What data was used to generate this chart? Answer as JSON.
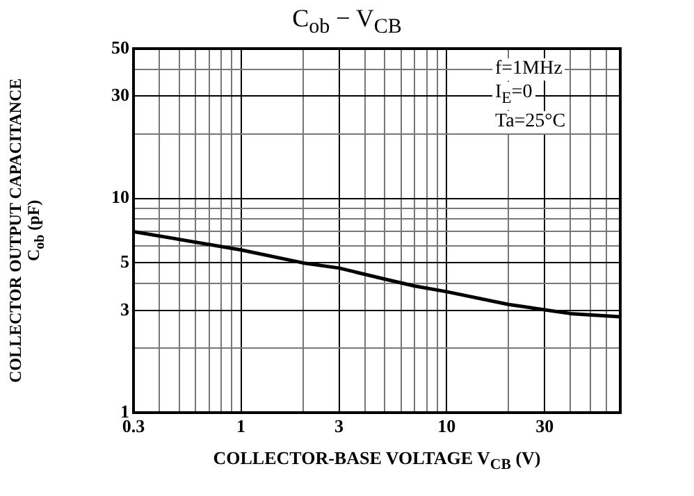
{
  "chart_data": {
    "type": "line",
    "title": "C$_{ob}$ − V$_{CB}$",
    "xlabel": "COLLECTOR-BASE VOLTAGE   V$_{CB}$   (V)",
    "ylabel": "COLLECTOR OUTPUT CAPACITANCE\nC$_{ob}$   (pF)",
    "annotations": [
      "f=1MHz",
      "I$_{E}$=0",
      "Ta=25°C"
    ],
    "log": "xy",
    "grid": true,
    "marker": "none",
    "line_style": "solid",
    "xlim": [
      0.3,
      70
    ],
    "ylim": [
      1,
      50
    ],
    "xticks": [
      0.3,
      {
        "value": 0.4,
        "label": null
      },
      {
        "value": 0.5,
        "label": null
      },
      {
        "value": 0.6,
        "label": null
      },
      {
        "value": 0.7,
        "label": null
      },
      {
        "value": 0.8,
        "label": null
      },
      {
        "value": 0.9,
        "label": null
      },
      1,
      {
        "value": 2,
        "label": null
      },
      3,
      {
        "value": 4,
        "label": null
      },
      {
        "value": 5,
        "label": null
      },
      {
        "value": 6,
        "label": null
      },
      {
        "value": 7,
        "label": null
      },
      {
        "value": 8,
        "label": null
      },
      {
        "value": 9,
        "label": null
      },
      10,
      {
        "value": 20,
        "label": null
      },
      30,
      {
        "value": 40,
        "label": null
      },
      {
        "value": 50,
        "label": null
      },
      {
        "value": 60,
        "label": null
      }
    ],
    "yticks": [
      1,
      {
        "value": 2,
        "label": null
      },
      3,
      {
        "value": 4,
        "label": null
      },
      5,
      {
        "value": 6,
        "label": null
      },
      {
        "value": 7,
        "label": null
      },
      {
        "value": 8,
        "label": null
      },
      {
        "value": 9,
        "label": null
      },
      10,
      {
        "value": 20,
        "label": null
      },
      30,
      {
        "value": 40,
        "label": null
      },
      50
    ],
    "x": [
      0.3,
      1,
      2,
      3,
      5,
      7,
      10,
      20,
      30,
      40,
      70
    ],
    "series": [
      {
        "color": "#000000",
        "values": [
          7.0,
          5.75,
          5.0,
          4.73,
          4.2,
          3.9,
          3.67,
          3.2,
          3.02,
          2.9,
          2.8
        ]
      }
    ]
  }
}
